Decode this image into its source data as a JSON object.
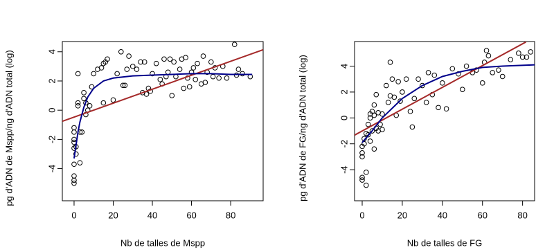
{
  "chart_data": [
    {
      "type": "scatter",
      "xlabel": "Nb de talles de Mspp",
      "ylabel": "pg d'ADN de Mspp/ng d'ADN total (log)",
      "xlim": [
        -6,
        96.6
      ],
      "ylim": [
        -6.2,
        4.7
      ],
      "xticks": [
        0,
        20,
        40,
        60,
        80
      ],
      "yticks": [
        -4,
        -2,
        0,
        2,
        4
      ],
      "series": [
        {
          "kind": "points",
          "color": "#000000",
          "x": [
            0,
            0,
            0,
            0,
            0,
            0,
            0,
            0,
            0,
            1,
            1,
            2,
            2,
            2,
            3,
            3,
            4,
            5,
            5,
            6,
            6,
            7,
            8,
            9,
            10,
            12,
            14,
            15,
            15,
            16,
            17,
            20,
            22,
            24,
            25,
            26,
            27,
            28,
            30,
            32,
            34,
            35,
            36,
            37,
            38,
            39,
            40,
            42,
            44,
            45,
            46,
            47,
            48,
            49,
            50,
            51,
            52,
            54,
            55,
            56,
            57,
            58,
            59,
            60,
            61,
            62,
            63,
            65,
            66,
            67,
            68,
            70,
            71,
            72,
            74,
            76,
            78,
            82,
            83,
            84,
            86,
            90
          ],
          "values": [
            -5,
            -4.8,
            -4.5,
            -3.7,
            -2.6,
            -2.2,
            -2,
            -1.5,
            -1.2,
            -3,
            -2.5,
            2.5,
            0.5,
            0.3,
            -1.5,
            -3.6,
            -1.5,
            0.8,
            1.2,
            0.5,
            -0.3,
            0,
            0.3,
            1.6,
            2.5,
            2.8,
            2.9,
            3.2,
            0.5,
            3.3,
            3.5,
            0.7,
            2.5,
            4,
            1.7,
            1.7,
            2.8,
            3.7,
            3,
            2.8,
            3.3,
            1.2,
            3.3,
            1.1,
            1.5,
            1.3,
            2.5,
            3.2,
            2.1,
            1.8,
            3.5,
            2.3,
            2.6,
            3.5,
            1,
            3.3,
            2.3,
            2.8,
            3.5,
            1.5,
            3.6,
            2.2,
            1.6,
            2.6,
            2.9,
            2.1,
            3.2,
            1.8,
            3.7,
            1.9,
            2.6,
            3.3,
            2.3,
            2.9,
            2.2,
            3,
            2.2,
            4.5,
            2.4,
            2.8,
            2.5,
            2.3
          ]
        },
        {
          "kind": "line",
          "color": "#a52a2a",
          "x": [
            -6,
            96.6
          ],
          "values": [
            -0.76,
            4.14
          ]
        },
        {
          "kind": "line",
          "color": "#00008b",
          "x": [
            0,
            1,
            2,
            3,
            5,
            7,
            10,
            15,
            20,
            30,
            40,
            50,
            60,
            70,
            80,
            91
          ],
          "values": [
            -3.3,
            -2.4,
            -1.5,
            -0.8,
            0.2,
            0.9,
            1.5,
            2.0,
            2.2,
            2.35,
            2.4,
            2.45,
            2.5,
            2.5,
            2.45,
            2.45
          ]
        }
      ]
    },
    {
      "type": "scatter",
      "xlabel": "Nb de talles de FG",
      "ylabel": "pg d'ADN de FG/ng d'ADN total (log)",
      "xlim": [
        -3.8,
        86
      ],
      "ylim": [
        -6.4,
        5.9
      ],
      "xticks": [
        0,
        20,
        40,
        60,
        80
      ],
      "yticks": [
        -4,
        -2,
        0,
        2,
        4
      ],
      "series": [
        {
          "kind": "points",
          "color": "#000000",
          "x": [
            0,
            0,
            0,
            0,
            0,
            1,
            1,
            2,
            2,
            2,
            3,
            3,
            4,
            4,
            4,
            5,
            5,
            6,
            6,
            6,
            7,
            7,
            8,
            8,
            9,
            10,
            10,
            12,
            13,
            14,
            14,
            15,
            16,
            17,
            18,
            19,
            20,
            22,
            24,
            25,
            26,
            28,
            30,
            32,
            33,
            35,
            36,
            38,
            40,
            42,
            45,
            48,
            50,
            52,
            55,
            57,
            60,
            61,
            62,
            63,
            65,
            68,
            70,
            74,
            78,
            80,
            82,
            84
          ],
          "values": [
            -4.6,
            -4.8,
            -3,
            -2.2,
            -2.7,
            -1.6,
            -2,
            -5.2,
            -4.2,
            -1.2,
            -0.5,
            -1.3,
            0,
            0.3,
            -1.8,
            0.5,
            -1,
            1,
            -2.4,
            0.2,
            1.8,
            -0.8,
            0.4,
            -1,
            -0.5,
            0.3,
            -0.9,
            2.5,
            1.2,
            4.3,
            1.7,
            3,
            1.6,
            0.2,
            2.8,
            1.3,
            2,
            3,
            0.5,
            -0.7,
            1.5,
            3,
            2.5,
            1.2,
            3.5,
            1.8,
            3.3,
            0.8,
            2.7,
            0.7,
            3.8,
            3.4,
            2.2,
            4,
            3.5,
            3.7,
            2.7,
            4.3,
            5.2,
            4.8,
            3.5,
            3.7,
            3.2,
            4.5,
            5,
            4.7,
            4.7,
            5.1
          ]
        },
        {
          "kind": "line",
          "color": "#a52a2a",
          "x": [
            -3.8,
            81.7
          ],
          "values": [
            -1.33,
            5.87
          ]
        },
        {
          "kind": "line",
          "color": "#00008b",
          "x": [
            0,
            5,
            10,
            20,
            30,
            40,
            50,
            60,
            70,
            86
          ],
          "values": [
            -1.9,
            -1.0,
            0,
            1.5,
            2.5,
            3.2,
            3.6,
            3.9,
            4.0,
            4.1
          ]
        }
      ]
    }
  ]
}
